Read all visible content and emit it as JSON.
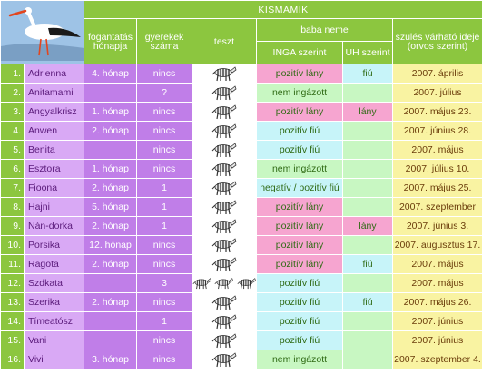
{
  "header": {
    "title": "KISMAMIK",
    "col_month": "fogantatás hónapja",
    "col_children": "gyerekek száma",
    "col_test": "teszt",
    "col_gender": "baba neme",
    "col_inga": "INGA szerint",
    "col_uh": "UH szerint",
    "col_due": "szülés várható ideje (orvos szerint)"
  },
  "colors": {
    "header_green": "#8cc63f",
    "name_lilac": "#d9a9f5",
    "month_purple": "#c07ee8",
    "pink": "#f6a5d0",
    "blue": "#c7f4f9",
    "green": "#c8f7c2",
    "due_yellow": "#f9f3a2"
  },
  "icons": {
    "logo": "stork-icon",
    "test": "zebra-icon"
  },
  "rows": [
    {
      "num": "1.",
      "name": "Adrienna",
      "month": "4. hónap",
      "children": "nincs",
      "zebras": 1,
      "inga": "pozitív lány",
      "inga_color": "pink",
      "uh": "fiú",
      "uh_color": "blue",
      "due": "2007. április"
    },
    {
      "num": "2.",
      "name": "Anitamami",
      "month": "",
      "children": "?",
      "zebras": 1,
      "inga": "nem ingázott",
      "inga_color": "green",
      "uh": "",
      "uh_color": "green",
      "due": "2007. július"
    },
    {
      "num": "3.",
      "name": "Angyalkrisz",
      "month": "1. hónap",
      "children": "nincs",
      "zebras": 1,
      "inga": "pozitív lány",
      "inga_color": "pink",
      "uh": "lány",
      "uh_color": "pink",
      "due": "2007. május 23."
    },
    {
      "num": "4.",
      "name": "Anwen",
      "month": "2. hónap",
      "children": "nincs",
      "zebras": 1,
      "inga": "pozitív fiú",
      "inga_color": "blue",
      "uh": "",
      "uh_color": "green",
      "due": "2007. június 28."
    },
    {
      "num": "5.",
      "name": "Benita",
      "month": "",
      "children": "nincs",
      "zebras": 1,
      "inga": "pozitív fiú",
      "inga_color": "blue",
      "uh": "",
      "uh_color": "green",
      "due": "2007. május"
    },
    {
      "num": "6.",
      "name": "Esztora",
      "month": "1. hónap",
      "children": "nincs",
      "zebras": 1,
      "inga": "nem ingázott",
      "inga_color": "green",
      "uh": "",
      "uh_color": "green",
      "due": "2007. július 10."
    },
    {
      "num": "7.",
      "name": "Fioona",
      "month": "2. hónap",
      "children": "1",
      "zebras": 1,
      "inga": "negatív / pozitív fiú",
      "inga_color": "blue",
      "uh": "",
      "uh_color": "green",
      "due": "2007. május 25."
    },
    {
      "num": "8.",
      "name": "Hajni",
      "month": "5. hónap",
      "children": "1",
      "zebras": 1,
      "inga": "pozitív lány",
      "inga_color": "pink",
      "uh": "",
      "uh_color": "green",
      "due": "2007. szeptember"
    },
    {
      "num": "9.",
      "name": "Nán-dorka",
      "month": "2. hónap",
      "children": "1",
      "zebras": 1,
      "inga": "pozitív lány",
      "inga_color": "pink",
      "uh": "lány",
      "uh_color": "pink",
      "due": "2007. június 3."
    },
    {
      "num": "10.",
      "name": "Porsika",
      "month": "12. hónap",
      "children": "nincs",
      "zebras": 1,
      "inga": "pozitív lány",
      "inga_color": "pink",
      "uh": "",
      "uh_color": "green",
      "due": "2007. augusztus 17."
    },
    {
      "num": "11.",
      "name": "Ragota",
      "month": "2. hónap",
      "children": "nincs",
      "zebras": 1,
      "inga": "pozitív lány",
      "inga_color": "pink",
      "uh": "fiú",
      "uh_color": "blue",
      "due": "2007. május"
    },
    {
      "num": "12.",
      "name": "Szdkata",
      "month": "",
      "children": "3",
      "zebras": 3,
      "inga": "pozitív fiú",
      "inga_color": "blue",
      "uh": "",
      "uh_color": "green",
      "due": "2007. május"
    },
    {
      "num": "13.",
      "name": "Szerika",
      "month": "2. hónap",
      "children": "nincs",
      "zebras": 1,
      "inga": "pozitív fiú",
      "inga_color": "blue",
      "uh": "fiú",
      "uh_color": "blue",
      "due": "2007. május 26."
    },
    {
      "num": "14.",
      "name": "Tímeatósz",
      "month": "",
      "children": "1",
      "zebras": 1,
      "inga": "pozitív fiú",
      "inga_color": "blue",
      "uh": "",
      "uh_color": "green",
      "due": "2007. június"
    },
    {
      "num": "15.",
      "name": "Vani",
      "month": "",
      "children": "nincs",
      "zebras": 1,
      "inga": "pozitív fiú",
      "inga_color": "blue",
      "uh": "",
      "uh_color": "green",
      "due": "2007. június"
    },
    {
      "num": "16.",
      "name": "Vivi",
      "month": "3. hónap",
      "children": "nincs",
      "zebras": 1,
      "inga": "nem ingázott",
      "inga_color": "green",
      "uh": "",
      "uh_color": "green",
      "due": "2007. szeptember 4."
    }
  ]
}
